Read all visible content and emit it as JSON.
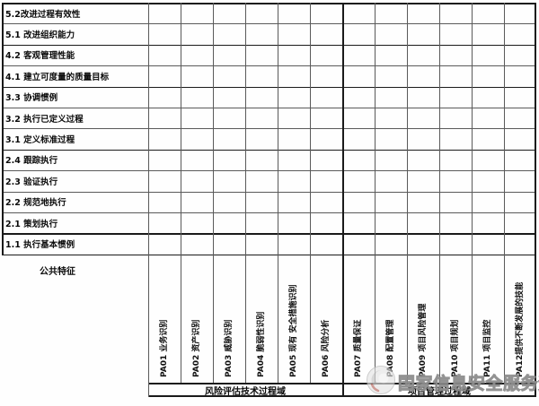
{
  "table": {
    "row_labels": [
      "5.2改进过程有效性",
      "5.1 改进组织能力",
      "4.2 客观管理性能",
      "4.1 建立可度量的质量目标",
      "3.3 协调惯例",
      "3.2 执行已定义过程",
      "3.1 定义标准过程",
      "2.4 跟踪执行",
      "2.3 验证执行",
      "2.2 规范地执行",
      "2.1 策划执行",
      "1.1 执行基本惯例"
    ],
    "common_feature_label": "公共特征",
    "column_labels": [
      "PA01 业务识别",
      "PA02 资产识别",
      "PA03 威胁识别",
      "PA04 脆弱性识别",
      "PA05 现有 安全措施识别",
      "PA06 风险分析",
      "PA07 质量保证",
      "PA08 配置管理",
      "PA09 项目风险管理",
      "PA10 项目规划",
      "PA11 项目监控",
      "PA12提供不断发展的技能"
    ],
    "groups": [
      {
        "label": "风险评估技术过程域",
        "span": 6
      },
      {
        "label": "项目管理过程域",
        "span": 6
      }
    ]
  },
  "watermark": {
    "text": "国家信息安全服务资质",
    "logo_icon": "certification-seal-icon"
  },
  "colors": {
    "grid_line": "#5a5a5a",
    "grid_line_strong": "#1a1a1a",
    "text": "#0a0a0a",
    "watermark_gray": "#7d7d7d",
    "background": "#fefefe"
  }
}
